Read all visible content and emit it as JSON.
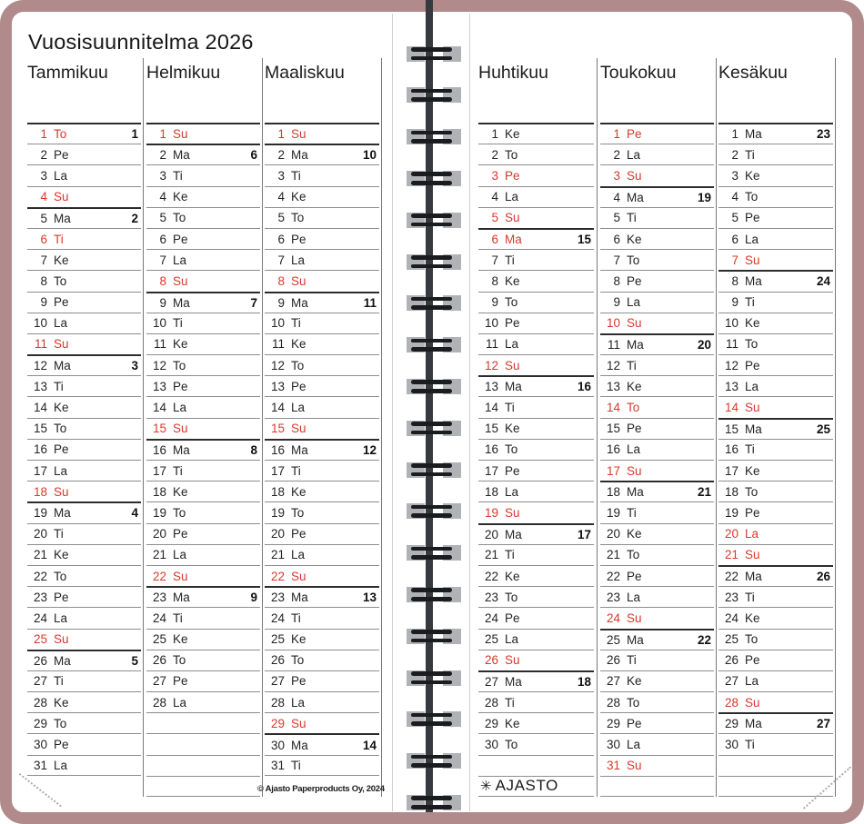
{
  "page_title": "Vuosisuunnitelma 2026",
  "copyright": "© Ajasto Paperproducts Oy, 2024",
  "brand": {
    "logo_text": "AJASTO",
    "logo_icon": "✳"
  },
  "colors": {
    "accent_red": "#d9382c",
    "cover": "#b18b8c"
  },
  "months": [
    {
      "name": "Tammikuu",
      "empty_rows": 0,
      "footer": "none",
      "days": [
        [
          1,
          "To",
          1,
          1
        ],
        [
          2,
          "Pe",
          null,
          0
        ],
        [
          3,
          "La",
          null,
          0
        ],
        [
          4,
          "Su",
          null,
          1
        ],
        [
          5,
          "Ma",
          2,
          0
        ],
        [
          6,
          "Ti",
          null,
          1
        ],
        [
          7,
          "Ke",
          null,
          0
        ],
        [
          8,
          "To",
          null,
          0
        ],
        [
          9,
          "Pe",
          null,
          0
        ],
        [
          10,
          "La",
          null,
          0
        ],
        [
          11,
          "Su",
          null,
          1
        ],
        [
          12,
          "Ma",
          3,
          0
        ],
        [
          13,
          "Ti",
          null,
          0
        ],
        [
          14,
          "Ke",
          null,
          0
        ],
        [
          15,
          "To",
          null,
          0
        ],
        [
          16,
          "Pe",
          null,
          0
        ],
        [
          17,
          "La",
          null,
          0
        ],
        [
          18,
          "Su",
          null,
          1
        ],
        [
          19,
          "Ma",
          4,
          0
        ],
        [
          20,
          "Ti",
          null,
          0
        ],
        [
          21,
          "Ke",
          null,
          0
        ],
        [
          22,
          "To",
          null,
          0
        ],
        [
          23,
          "Pe",
          null,
          0
        ],
        [
          24,
          "La",
          null,
          0
        ],
        [
          25,
          "Su",
          null,
          1
        ],
        [
          26,
          "Ma",
          5,
          0
        ],
        [
          27,
          "Ti",
          null,
          0
        ],
        [
          28,
          "Ke",
          null,
          0
        ],
        [
          29,
          "To",
          null,
          0
        ],
        [
          30,
          "Pe",
          null,
          0
        ],
        [
          31,
          "La",
          null,
          0
        ]
      ]
    },
    {
      "name": "Helmikuu",
      "empty_rows": 4,
      "footer": "none",
      "days": [
        [
          1,
          "Su",
          null,
          1
        ],
        [
          2,
          "Ma",
          6,
          0
        ],
        [
          3,
          "Ti",
          null,
          0
        ],
        [
          4,
          "Ke",
          null,
          0
        ],
        [
          5,
          "To",
          null,
          0
        ],
        [
          6,
          "Pe",
          null,
          0
        ],
        [
          7,
          "La",
          null,
          0
        ],
        [
          8,
          "Su",
          null,
          1
        ],
        [
          9,
          "Ma",
          7,
          0
        ],
        [
          10,
          "Ti",
          null,
          0
        ],
        [
          11,
          "Ke",
          null,
          0
        ],
        [
          12,
          "To",
          null,
          0
        ],
        [
          13,
          "Pe",
          null,
          0
        ],
        [
          14,
          "La",
          null,
          0
        ],
        [
          15,
          "Su",
          null,
          1
        ],
        [
          16,
          "Ma",
          8,
          0
        ],
        [
          17,
          "Ti",
          null,
          0
        ],
        [
          18,
          "Ke",
          null,
          0
        ],
        [
          19,
          "To",
          null,
          0
        ],
        [
          20,
          "Pe",
          null,
          0
        ],
        [
          21,
          "La",
          null,
          0
        ],
        [
          22,
          "Su",
          null,
          1
        ],
        [
          23,
          "Ma",
          9,
          0
        ],
        [
          24,
          "Ti",
          null,
          0
        ],
        [
          25,
          "Ke",
          null,
          0
        ],
        [
          26,
          "To",
          null,
          0
        ],
        [
          27,
          "Pe",
          null,
          0
        ],
        [
          28,
          "La",
          null,
          0
        ]
      ]
    },
    {
      "name": "Maaliskuu",
      "empty_rows": 0,
      "footer": "copyright",
      "days": [
        [
          1,
          "Su",
          null,
          1
        ],
        [
          2,
          "Ma",
          10,
          0
        ],
        [
          3,
          "Ti",
          null,
          0
        ],
        [
          4,
          "Ke",
          null,
          0
        ],
        [
          5,
          "To",
          null,
          0
        ],
        [
          6,
          "Pe",
          null,
          0
        ],
        [
          7,
          "La",
          null,
          0
        ],
        [
          8,
          "Su",
          null,
          1
        ],
        [
          9,
          "Ma",
          11,
          0
        ],
        [
          10,
          "Ti",
          null,
          0
        ],
        [
          11,
          "Ke",
          null,
          0
        ],
        [
          12,
          "To",
          null,
          0
        ],
        [
          13,
          "Pe",
          null,
          0
        ],
        [
          14,
          "La",
          null,
          0
        ],
        [
          15,
          "Su",
          null,
          1
        ],
        [
          16,
          "Ma",
          12,
          0
        ],
        [
          17,
          "Ti",
          null,
          0
        ],
        [
          18,
          "Ke",
          null,
          0
        ],
        [
          19,
          "To",
          null,
          0
        ],
        [
          20,
          "Pe",
          null,
          0
        ],
        [
          21,
          "La",
          null,
          0
        ],
        [
          22,
          "Su",
          null,
          1
        ],
        [
          23,
          "Ma",
          13,
          0
        ],
        [
          24,
          "Ti",
          null,
          0
        ],
        [
          25,
          "Ke",
          null,
          0
        ],
        [
          26,
          "To",
          null,
          0
        ],
        [
          27,
          "Pe",
          null,
          0
        ],
        [
          28,
          "La",
          null,
          0
        ],
        [
          29,
          "Su",
          null,
          1
        ],
        [
          30,
          "Ma",
          14,
          0
        ],
        [
          31,
          "Ti",
          null,
          0
        ]
      ]
    },
    {
      "name": "Huhtikuu",
      "empty_rows": 1,
      "footer": "logo",
      "days": [
        [
          1,
          "Ke",
          null,
          0
        ],
        [
          2,
          "To",
          null,
          0
        ],
        [
          3,
          "Pe",
          null,
          1
        ],
        [
          4,
          "La",
          null,
          0
        ],
        [
          5,
          "Su",
          null,
          1
        ],
        [
          6,
          "Ma",
          15,
          1
        ],
        [
          7,
          "Ti",
          null,
          0
        ],
        [
          8,
          "Ke",
          null,
          0
        ],
        [
          9,
          "To",
          null,
          0
        ],
        [
          10,
          "Pe",
          null,
          0
        ],
        [
          11,
          "La",
          null,
          0
        ],
        [
          12,
          "Su",
          null,
          1
        ],
        [
          13,
          "Ma",
          16,
          0
        ],
        [
          14,
          "Ti",
          null,
          0
        ],
        [
          15,
          "Ke",
          null,
          0
        ],
        [
          16,
          "To",
          null,
          0
        ],
        [
          17,
          "Pe",
          null,
          0
        ],
        [
          18,
          "La",
          null,
          0
        ],
        [
          19,
          "Su",
          null,
          1
        ],
        [
          20,
          "Ma",
          17,
          0
        ],
        [
          21,
          "Ti",
          null,
          0
        ],
        [
          22,
          "Ke",
          null,
          0
        ],
        [
          23,
          "To",
          null,
          0
        ],
        [
          24,
          "Pe",
          null,
          0
        ],
        [
          25,
          "La",
          null,
          0
        ],
        [
          26,
          "Su",
          null,
          1
        ],
        [
          27,
          "Ma",
          18,
          0
        ],
        [
          28,
          "Ti",
          null,
          0
        ],
        [
          29,
          "Ke",
          null,
          0
        ],
        [
          30,
          "To",
          null,
          0
        ]
      ]
    },
    {
      "name": "Toukokuu",
      "empty_rows": 1,
      "footer": "none",
      "days": [
        [
          1,
          "Pe",
          null,
          1
        ],
        [
          2,
          "La",
          null,
          0
        ],
        [
          3,
          "Su",
          null,
          1
        ],
        [
          4,
          "Ma",
          19,
          0
        ],
        [
          5,
          "Ti",
          null,
          0
        ],
        [
          6,
          "Ke",
          null,
          0
        ],
        [
          7,
          "To",
          null,
          0
        ],
        [
          8,
          "Pe",
          null,
          0
        ],
        [
          9,
          "La",
          null,
          0
        ],
        [
          10,
          "Su",
          null,
          1
        ],
        [
          11,
          "Ma",
          20,
          0
        ],
        [
          12,
          "Ti",
          null,
          0
        ],
        [
          13,
          "Ke",
          null,
          0
        ],
        [
          14,
          "To",
          null,
          1
        ],
        [
          15,
          "Pe",
          null,
          0
        ],
        [
          16,
          "La",
          null,
          0
        ],
        [
          17,
          "Su",
          null,
          1
        ],
        [
          18,
          "Ma",
          21,
          0
        ],
        [
          19,
          "Ti",
          null,
          0
        ],
        [
          20,
          "Ke",
          null,
          0
        ],
        [
          21,
          "To",
          null,
          0
        ],
        [
          22,
          "Pe",
          null,
          0
        ],
        [
          23,
          "La",
          null,
          0
        ],
        [
          24,
          "Su",
          null,
          1
        ],
        [
          25,
          "Ma",
          22,
          0
        ],
        [
          26,
          "Ti",
          null,
          0
        ],
        [
          27,
          "Ke",
          null,
          0
        ],
        [
          28,
          "To",
          null,
          0
        ],
        [
          29,
          "Pe",
          null,
          0
        ],
        [
          30,
          "La",
          null,
          0
        ],
        [
          31,
          "Su",
          null,
          1
        ]
      ]
    },
    {
      "name": "Kesäkuu",
      "empty_rows": 2,
      "footer": "none",
      "days": [
        [
          1,
          "Ma",
          23,
          0
        ],
        [
          2,
          "Ti",
          null,
          0
        ],
        [
          3,
          "Ke",
          null,
          0
        ],
        [
          4,
          "To",
          null,
          0
        ],
        [
          5,
          "Pe",
          null,
          0
        ],
        [
          6,
          "La",
          null,
          0
        ],
        [
          7,
          "Su",
          null,
          1
        ],
        [
          8,
          "Ma",
          24,
          0
        ],
        [
          9,
          "Ti",
          null,
          0
        ],
        [
          10,
          "Ke",
          null,
          0
        ],
        [
          11,
          "To",
          null,
          0
        ],
        [
          12,
          "Pe",
          null,
          0
        ],
        [
          13,
          "La",
          null,
          0
        ],
        [
          14,
          "Su",
          null,
          1
        ],
        [
          15,
          "Ma",
          25,
          0
        ],
        [
          16,
          "Ti",
          null,
          0
        ],
        [
          17,
          "Ke",
          null,
          0
        ],
        [
          18,
          "To",
          null,
          0
        ],
        [
          19,
          "Pe",
          null,
          0
        ],
        [
          20,
          "La",
          null,
          1
        ],
        [
          21,
          "Su",
          null,
          1
        ],
        [
          22,
          "Ma",
          26,
          0
        ],
        [
          23,
          "Ti",
          null,
          0
        ],
        [
          24,
          "Ke",
          null,
          0
        ],
        [
          25,
          "To",
          null,
          0
        ],
        [
          26,
          "Pe",
          null,
          0
        ],
        [
          27,
          "La",
          null,
          0
        ],
        [
          28,
          "Su",
          null,
          1
        ],
        [
          29,
          "Ma",
          27,
          0
        ],
        [
          30,
          "Ti",
          null,
          0
        ]
      ]
    }
  ]
}
